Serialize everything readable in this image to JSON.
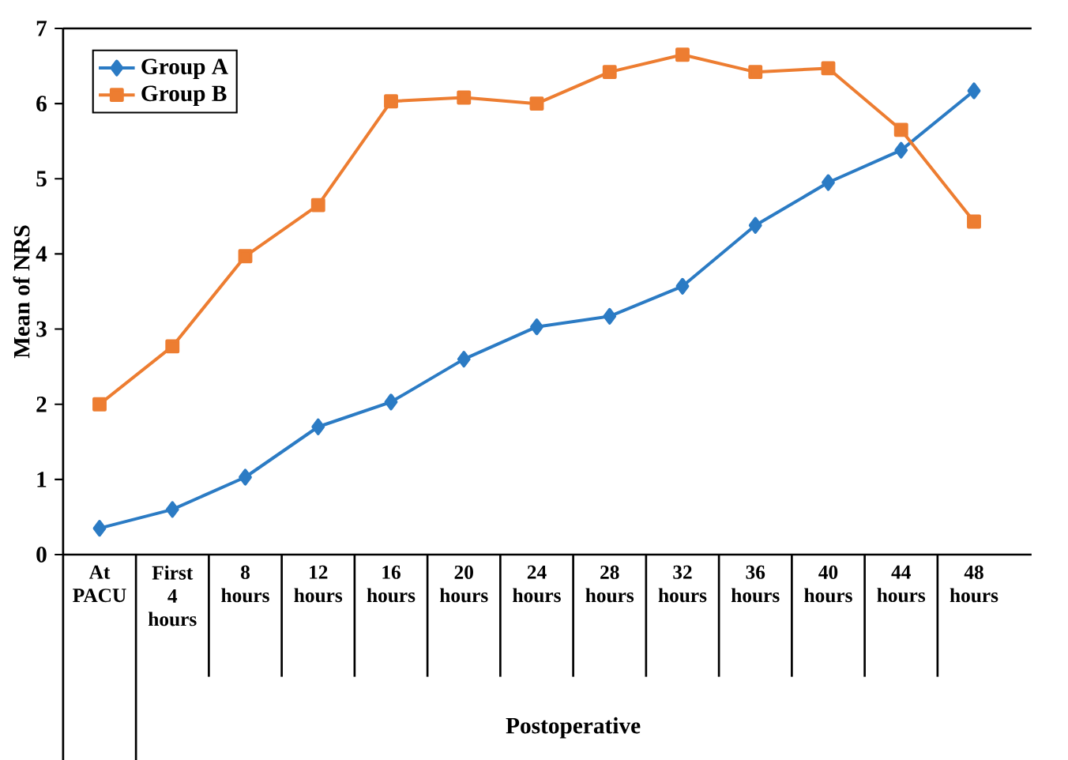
{
  "chart_data": {
    "type": "line",
    "ylabel": "Mean of NRS",
    "xlabel": "Postoperative",
    "categories": [
      "At PACU",
      "First 4 hours",
      "8 hours",
      "12 hours",
      "16 hours",
      "20 hours",
      "24 hours",
      "28 hours",
      "32 hours",
      "36 hours",
      "40 hours",
      "44 hours",
      "48 hours"
    ],
    "series": [
      {
        "name": "Group A",
        "color": "#2b7bc4",
        "marker": "diamond",
        "values": [
          0.35,
          0.6,
          1.03,
          1.7,
          2.03,
          2.6,
          3.03,
          3.17,
          3.57,
          4.38,
          4.95,
          5.38,
          6.17
        ]
      },
      {
        "name": "Group B",
        "color": "#ed7d31",
        "marker": "square",
        "values": [
          2.0,
          2.77,
          3.97,
          4.65,
          6.03,
          6.08,
          6.0,
          6.42,
          6.65,
          6.42,
          6.47,
          5.65,
          4.43
        ]
      }
    ],
    "ylim": [
      0,
      7
    ],
    "yticks": [
      0,
      1,
      2,
      3,
      4,
      5,
      6,
      7
    ],
    "grid": false,
    "legend": "top left",
    "line_style": "solid"
  }
}
